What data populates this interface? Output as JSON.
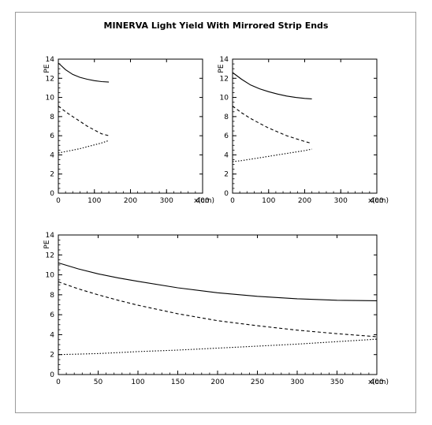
{
  "title": "MINERVA Light Yield With Mirrored Strip Ends",
  "chart_data": [
    {
      "type": "line",
      "xlabel": "x(cm)",
      "ylabel": "PE",
      "xlim": [
        0,
        400
      ],
      "ylim": [
        0,
        14
      ],
      "xticks": [
        0,
        100,
        200,
        300,
        400
      ],
      "yticks": [
        0,
        2,
        4,
        6,
        8,
        10,
        12,
        14
      ],
      "series": [
        {
          "style": "solid",
          "x": [
            0,
            20,
            40,
            60,
            80,
            100,
            120,
            140
          ],
          "y": [
            13.6,
            12.9,
            12.4,
            12.1,
            11.9,
            11.75,
            11.65,
            11.6
          ]
        },
        {
          "style": "dashed",
          "x": [
            0,
            20,
            40,
            60,
            80,
            100,
            120,
            140
          ],
          "y": [
            9.1,
            8.5,
            8.0,
            7.5,
            7.0,
            6.6,
            6.2,
            6.0
          ]
        },
        {
          "style": "dotted",
          "x": [
            0,
            20,
            40,
            60,
            80,
            100,
            120,
            140
          ],
          "y": [
            4.2,
            4.35,
            4.5,
            4.65,
            4.85,
            5.05,
            5.25,
            5.5
          ]
        }
      ]
    },
    {
      "type": "line",
      "xlabel": "x(cm)",
      "ylabel": "PE",
      "xlim": [
        0,
        400
      ],
      "ylim": [
        0,
        14
      ],
      "xticks": [
        0,
        100,
        200,
        300,
        400
      ],
      "yticks": [
        0,
        2,
        4,
        6,
        8,
        10,
        12,
        14
      ],
      "series": [
        {
          "style": "solid",
          "x": [
            0,
            25,
            50,
            75,
            100,
            125,
            150,
            175,
            200,
            220
          ],
          "y": [
            12.6,
            11.9,
            11.3,
            10.9,
            10.6,
            10.35,
            10.15,
            10.0,
            9.9,
            9.85
          ]
        },
        {
          "style": "dashed",
          "x": [
            0,
            25,
            50,
            75,
            100,
            125,
            150,
            175,
            200,
            220
          ],
          "y": [
            9.1,
            8.4,
            7.8,
            7.3,
            6.8,
            6.4,
            6.0,
            5.7,
            5.4,
            5.2
          ]
        },
        {
          "style": "dotted",
          "x": [
            0,
            25,
            50,
            75,
            100,
            125,
            150,
            175,
            200,
            220
          ],
          "y": [
            3.3,
            3.4,
            3.55,
            3.7,
            3.85,
            4.0,
            4.15,
            4.3,
            4.45,
            4.6
          ]
        }
      ]
    },
    {
      "type": "line",
      "xlabel": "x(cm)",
      "ylabel": "PE",
      "xlim": [
        0,
        400
      ],
      "ylim": [
        0,
        14
      ],
      "xticks": [
        0,
        50,
        100,
        150,
        200,
        250,
        300,
        350,
        400
      ],
      "yticks": [
        0,
        2,
        4,
        6,
        8,
        10,
        12,
        14
      ],
      "series": [
        {
          "style": "solid",
          "x": [
            0,
            25,
            50,
            75,
            100,
            150,
            200,
            250,
            300,
            350,
            400
          ],
          "y": [
            11.2,
            10.6,
            10.1,
            9.7,
            9.35,
            8.7,
            8.2,
            7.85,
            7.6,
            7.45,
            7.4
          ]
        },
        {
          "style": "dashed",
          "x": [
            0,
            25,
            50,
            75,
            100,
            150,
            200,
            250,
            300,
            350,
            400
          ],
          "y": [
            9.3,
            8.6,
            8.0,
            7.45,
            6.95,
            6.1,
            5.4,
            4.9,
            4.45,
            4.1,
            3.8
          ]
        },
        {
          "style": "dotted",
          "x": [
            0,
            25,
            50,
            75,
            100,
            150,
            200,
            250,
            300,
            350,
            400
          ],
          "y": [
            2.0,
            2.05,
            2.1,
            2.2,
            2.3,
            2.45,
            2.65,
            2.85,
            3.05,
            3.3,
            3.55
          ]
        }
      ]
    }
  ]
}
